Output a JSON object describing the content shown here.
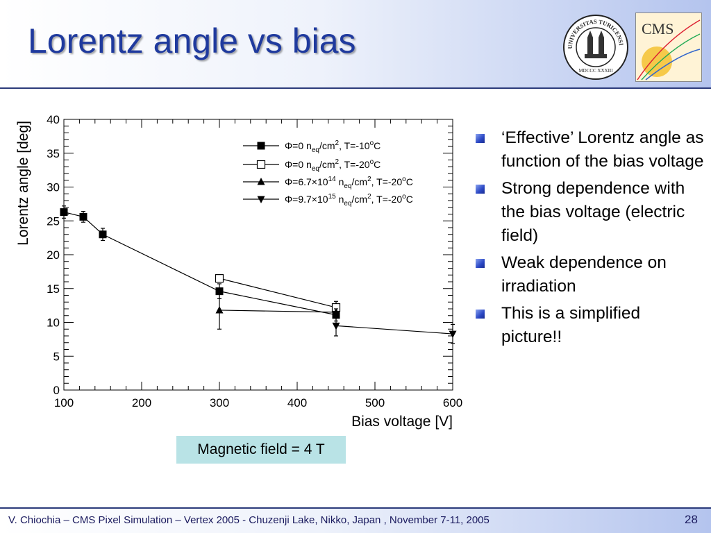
{
  "slide": {
    "title": "Lorentz angle vs bias",
    "bullets": [
      "‘Effective’ Lorentz angle as function of the bias voltage",
      "Strong dependence with the bias voltage (electric field)",
      "Weak dependence on irradiation",
      "This is a simplified picture!!"
    ],
    "note": "Magnetic field = 4 T",
    "footer": "V. Chiochia – CMS Pixel Simulation – Vertex 2005 - Chuzenji Lake, Nikko, Japan , November 7-11, 2005",
    "page_number": "28",
    "logos": {
      "seal_text": "UNIVERSITAS TURICENSIS",
      "seal_year": "MDCCC XXXIII",
      "cms_text": "CMS"
    },
    "colors": {
      "title": "#1f3a9e",
      "note_bg": "#b9e3e6",
      "bullet": "#2a47c4"
    }
  },
  "chart_data": {
    "type": "line",
    "xlabel": "Bias voltage [V]",
    "ylabel": "Lorentz angle [deg]",
    "xlim": [
      100,
      600
    ],
    "ylim": [
      0,
      40
    ],
    "xticks": [
      100,
      200,
      300,
      400,
      500,
      600
    ],
    "yticks": [
      0,
      5,
      10,
      15,
      20,
      25,
      30,
      35,
      40
    ],
    "legend_position": "top-right",
    "series": [
      {
        "name": "Φ=0 n_eq/cm², T=-10°C",
        "legend": {
          "pre": "Φ=0 n",
          "sub1": "eq",
          "mid": "/cm",
          "sup1": "2",
          "post": ", T=-10",
          "sup2": "o",
          "tail": "C"
        },
        "marker": "filled-square",
        "x": [
          100,
          125,
          150,
          300,
          450
        ],
        "y": [
          26.3,
          25.6,
          23.0,
          14.6,
          11.1
        ],
        "yerr": [
          0.9,
          0.8,
          0.9,
          1.1,
          0.9
        ]
      },
      {
        "name": "Φ=0 n_eq/cm², T=-20°C",
        "legend": {
          "pre": "Φ=0 n",
          "sub1": "eq",
          "mid": "/cm",
          "sup1": "2",
          "post": ", T=-20",
          "sup2": "o",
          "tail": "C"
        },
        "marker": "open-square",
        "x": [
          300,
          450
        ],
        "y": [
          16.5,
          12.2
        ],
        "yerr": [
          0.3,
          0.9
        ]
      },
      {
        "name": "Φ=6.7×10¹⁴ n_eq/cm², T=-20°C",
        "legend": {
          "pre": "Φ=6.7×10",
          "sup0": "14",
          "pre2": " n",
          "sub1": "eq",
          "mid": "/cm",
          "sup1": "2",
          "post": ", T=-20",
          "sup2": "o",
          "tail": "C"
        },
        "marker": "filled-triangle-up",
        "x": [
          300,
          450
        ],
        "y": [
          11.8,
          11.5
        ],
        "yerr": [
          2.8,
          0.5
        ]
      },
      {
        "name": "Φ=9.7×10¹⁵ n_eq/cm², T=-20°C",
        "legend": {
          "pre": "Φ=9.7×10",
          "sup0": "15",
          "pre2": " n",
          "sub1": "eq",
          "mid": "/cm",
          "sup1": "2",
          "post": ", T=-20",
          "sup2": "o",
          "tail": "C"
        },
        "marker": "filled-triangle-down",
        "x": [
          450,
          600
        ],
        "y": [
          9.5,
          8.3
        ],
        "yerr": [
          1.5,
          1.4
        ]
      }
    ]
  }
}
